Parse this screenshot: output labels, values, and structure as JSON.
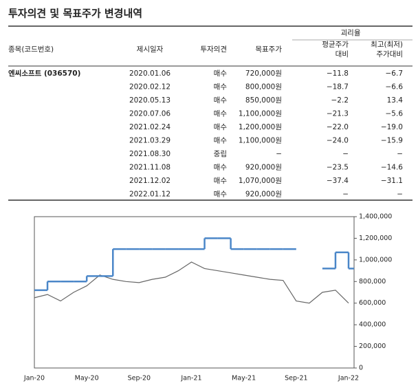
{
  "title": "투자의견 및 목표주가 변경내역",
  "table": {
    "group_header": "괴리율",
    "headers": [
      "종목(코드번호)",
      "제시일자",
      "투자의견",
      "목표주가",
      "평균주가 대비",
      "최고(최저) 주가대비"
    ],
    "company": "엔씨소프트 (036570)",
    "rows": [
      [
        "2020.01.06",
        "매수",
        "720,000원",
        "−11.8",
        "−6.7"
      ],
      [
        "2020.02.12",
        "매수",
        "800,000원",
        "−18.7",
        "−6.6"
      ],
      [
        "2020.05.13",
        "매수",
        "850,000원",
        "−2.2",
        "13.4"
      ],
      [
        "2020.07.06",
        "매수",
        "1,100,000원",
        "−21.3",
        "−5.6"
      ],
      [
        "2021.02.24",
        "매수",
        "1,200,000원",
        "−22.0",
        "−19.0"
      ],
      [
        "2021.03.29",
        "매수",
        "1,100,000원",
        "−24.0",
        "−15.9"
      ],
      [
        "2021.08.30",
        "중립",
        "−",
        "−",
        "−"
      ],
      [
        "2021.11.08",
        "매수",
        "920,000원",
        "−23.5",
        "−14.6"
      ],
      [
        "2021.12.02",
        "매수",
        "1,070,000원",
        "−37.4",
        "−31.1"
      ],
      [
        "2022.01.12",
        "매수",
        "920,000원",
        "−",
        "−"
      ]
    ]
  },
  "chart_data": {
    "type": "line",
    "x": [
      "Jan-20",
      null,
      null,
      null,
      "May-20",
      null,
      null,
      null,
      "Sep-20",
      null,
      null,
      null,
      "Jan-21",
      null,
      null,
      null,
      "May-21",
      null,
      null,
      null,
      "Sep-21",
      null,
      null,
      null,
      "Jan-22"
    ],
    "series": [
      {
        "color": "#666666",
        "values": [
          650000,
          680000,
          620000,
          700000,
          760000,
          860000,
          820000,
          800000,
          790000,
          820000,
          840000,
          900000,
          980000,
          920000,
          900000,
          880000,
          860000,
          840000,
          820000,
          810000,
          620000,
          600000,
          700000,
          720000,
          600000
        ]
      },
      {
        "color": "#4a86c8",
        "values": [
          720000,
          800000,
          800000,
          800000,
          850000,
          850000,
          1100000,
          1100000,
          1100000,
          1100000,
          1100000,
          1100000,
          1100000,
          1200000,
          1200000,
          1100000,
          1100000,
          1100000,
          1100000,
          1100000,
          null,
          null,
          920000,
          1070000,
          920000
        ]
      }
    ],
    "ylim": [
      0,
      1400000
    ],
    "yticks": [
      0,
      {
        "value": 200000,
        "label": "200,000"
      },
      {
        "value": 400000,
        "label": "400,000"
      },
      {
        "value": 600000,
        "label": "600,000"
      },
      {
        "value": 800000,
        "label": "800,000"
      },
      {
        "value": 1000000,
        "label": "1,000,000"
      },
      {
        "value": 1200000,
        "label": "1,200,000"
      },
      {
        "value": 1400000,
        "label": "1,400,000"
      }
    ]
  }
}
